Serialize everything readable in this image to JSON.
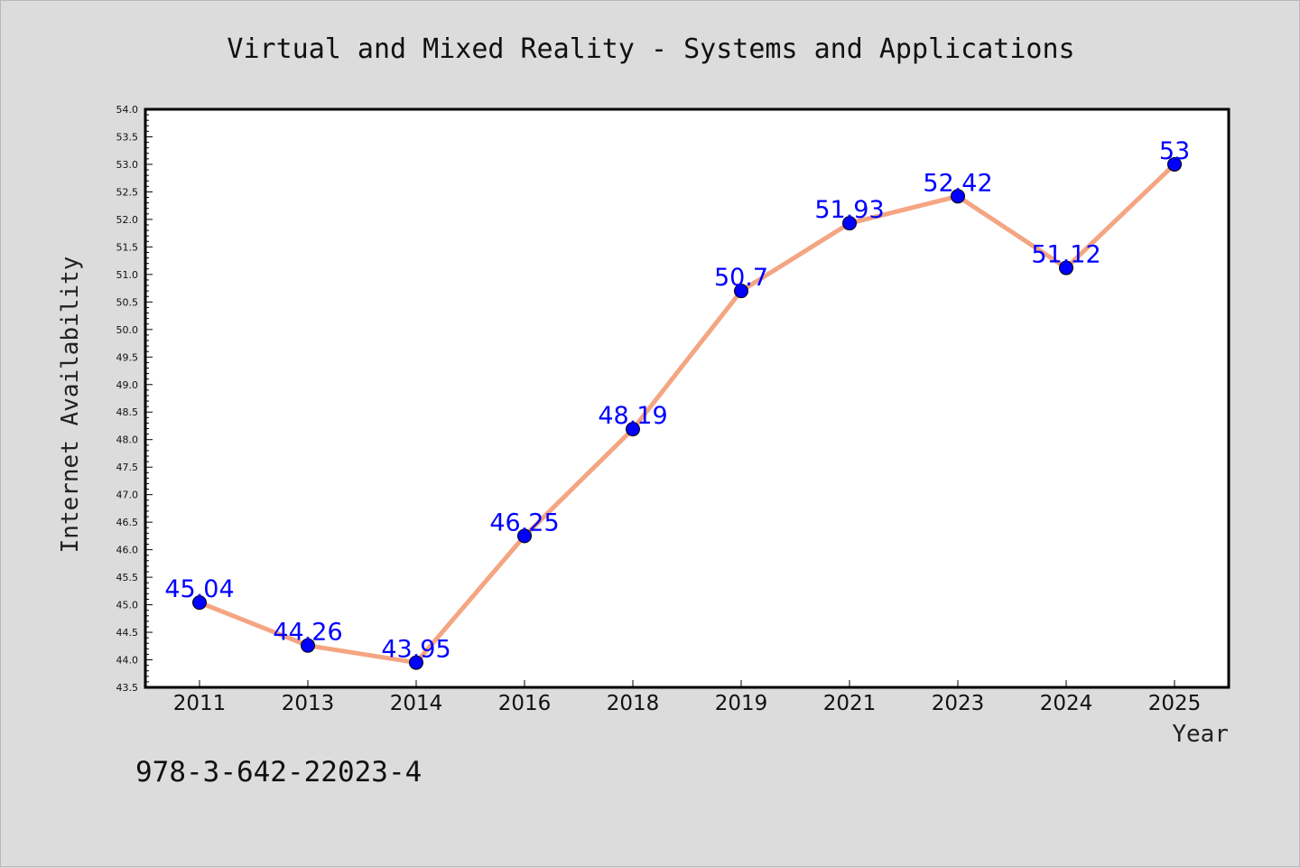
{
  "chart_data": {
    "type": "line",
    "title": "Virtual and Mixed Reality - Systems and Applications",
    "xlabel": "Year",
    "ylabel": "Internet Availability",
    "categories": [
      "2011",
      "2013",
      "2014",
      "2016",
      "2018",
      "2019",
      "2021",
      "2023",
      "2024",
      "2025"
    ],
    "series": [
      {
        "values": [
          45.04,
          44.26,
          43.95,
          46.25,
          48.19,
          50.7,
          51.93,
          52.42,
          51.12,
          53
        ],
        "labels": [
          "45.04",
          "44.26",
          "43.95",
          "46.25",
          "48.19",
          "50.7",
          "51.93",
          "52.42",
          "51.12",
          "53"
        ],
        "line_color": "#f4a582",
        "marker_color": "#0000ff"
      }
    ],
    "ylim": [
      43.5,
      54.0
    ],
    "yticks": [
      "43.5",
      "44.0",
      "44.5",
      "45.0",
      "45.5",
      "46.0",
      "46.5",
      "47.0",
      "47.5",
      "48.0",
      "48.5",
      "49.0",
      "49.5",
      "50.0",
      "50.5",
      "51.0",
      "51.5",
      "52.0",
      "52.5",
      "53.0",
      "53.5",
      "54.0"
    ],
    "grid": false,
    "legend": "none"
  },
  "footer": {
    "text": "978-3-642-22023-4"
  },
  "colors": {
    "background": "#dcdcdc",
    "plot_background": "#ffffff",
    "line": "#f4a582",
    "marker": "#0000ff",
    "data_label": "#0000ff"
  }
}
